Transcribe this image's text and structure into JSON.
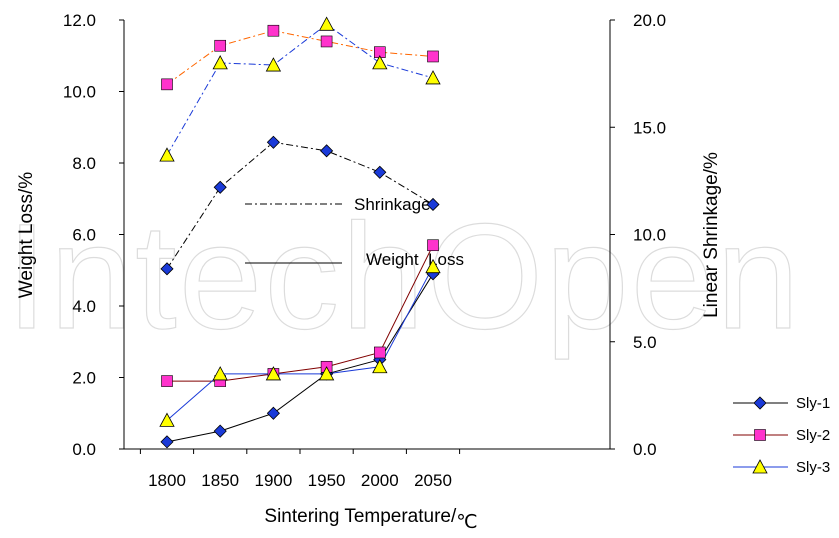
{
  "chart_data": {
    "type": "line",
    "x": [
      1800,
      1850,
      1900,
      1950,
      2000,
      2050
    ],
    "xlabel": "Sintering Temperature/",
    "xlabel_unit": "℃",
    "ylabel_left": "Weight Loss/%",
    "ylabel_right": "Linear Shrinkage/%",
    "ylim_left": [
      0,
      12
    ],
    "ylim_right": [
      0,
      20
    ],
    "yticks_left": [
      "0.0",
      "2.0",
      "4.0",
      "6.0",
      "8.0",
      "10.0",
      "12.0"
    ],
    "yticks_right": [
      "0.0",
      "5.0",
      "10.0",
      "15.0",
      "20.0"
    ],
    "xticks": [
      "1800",
      "1850",
      "1900",
      "1950",
      "2000",
      "2050"
    ],
    "annotations": {
      "shrinkage": "Shrinkage",
      "weight_loss": "Weight  Loss"
    },
    "legend_position": "right",
    "watermark": "IntechOpen",
    "series": [
      {
        "name": "Sly-1",
        "marker": "diamond",
        "color": "#1a3ad8",
        "line_color": "#000000",
        "weight_loss": [
          0.2,
          0.5,
          1.0,
          2.1,
          2.5,
          4.9
        ],
        "shrinkage": [
          8.4,
          12.2,
          14.3,
          13.9,
          12.9,
          11.4
        ],
        "shrinkage_line_color": "#000000"
      },
      {
        "name": "Sly-2",
        "marker": "square",
        "color": "#ff33cc",
        "line_color": "#800000",
        "weight_loss": [
          1.9,
          1.9,
          2.1,
          2.3,
          2.7,
          5.7
        ],
        "shrinkage": [
          17.0,
          18.8,
          19.5,
          19.0,
          18.5,
          18.3
        ],
        "shrinkage_line_color": "#ff6600"
      },
      {
        "name": "Sly-3",
        "marker": "triangle",
        "color": "#ffff00",
        "line_color": "#1a3ad8",
        "weight_loss": [
          0.8,
          2.1,
          2.1,
          2.1,
          2.3,
          5.1
        ],
        "shrinkage": [
          13.7,
          18.0,
          17.9,
          19.8,
          18.0,
          17.3
        ],
        "shrinkage_line_color": "#1a3ad8"
      }
    ]
  }
}
